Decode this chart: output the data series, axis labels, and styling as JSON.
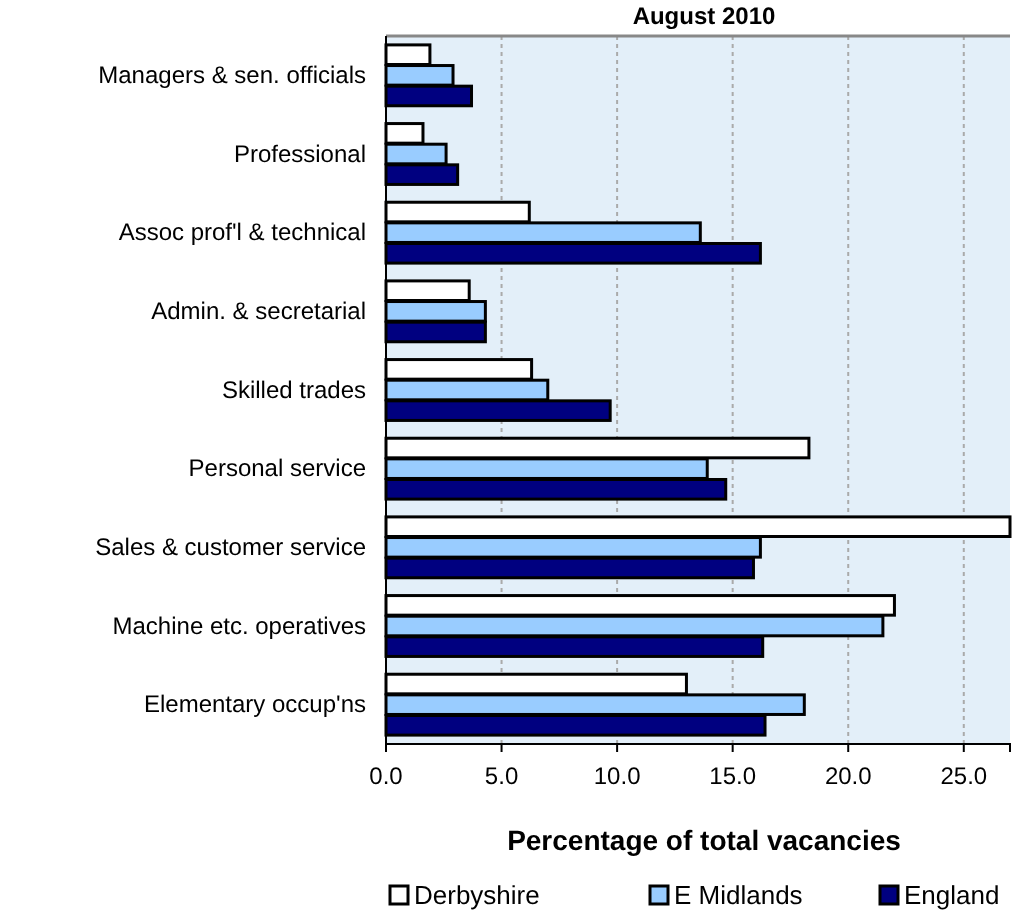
{
  "chart_data": {
    "type": "bar",
    "orientation": "horizontal",
    "title": "August 2010",
    "xlabel": "Percentage of total vacancies",
    "categories": [
      "Managers  & sen. officials",
      "Professional",
      "Assoc prof'l & technical",
      "Admin. & secretarial",
      "Skilled trades",
      "Personal service",
      "Sales & customer service",
      "Machine etc. operatives",
      "Elementary occup'ns"
    ],
    "series": [
      {
        "name": "Derbyshire",
        "color": "#ffffff",
        "values": [
          1.9,
          1.6,
          6.2,
          3.6,
          6.3,
          18.3,
          27,
          22.0,
          13.0
        ]
      },
      {
        "name": "E Midlands",
        "color": "#99ccff",
        "values": [
          2.9,
          2.6,
          13.6,
          4.3,
          7.0,
          13.9,
          16.2,
          21.5,
          18.1
        ]
      },
      {
        "name": "England",
        "color": "#000080",
        "values": [
          3.7,
          3.1,
          16.2,
          4.3,
          9.7,
          14.7,
          15.9,
          16.3,
          16.4
        ]
      }
    ],
    "xlim": [
      0,
      27
    ],
    "xticks": [
      {
        "value": 0,
        "label": "0.0"
      },
      {
        "value": 5,
        "label": "5.0"
      },
      {
        "value": 10,
        "label": "10.0"
      },
      {
        "value": 15,
        "label": "15.0"
      },
      {
        "value": 20,
        "label": "20.0"
      },
      {
        "value": 25,
        "label": "25.0"
      }
    ],
    "grid": "x",
    "legend": "bottom"
  }
}
